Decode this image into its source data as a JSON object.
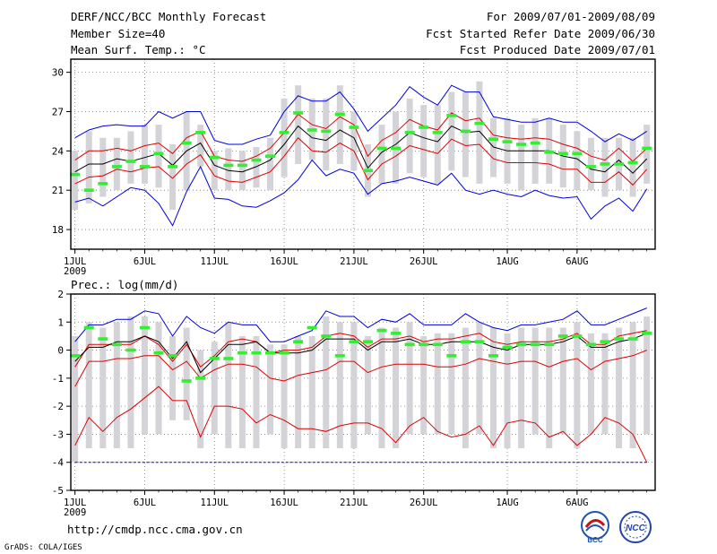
{
  "header": {
    "title": "DERF/NCC/BCC Monthly Forecast",
    "member_size": "Member Size=40",
    "variable": "Mean Surf. Temp.: °C",
    "forecast_range": "For 2009/07/01-2009/08/09",
    "start_date": "Fcst Started Refer Date 2009/06/30",
    "produced_date": "Fcst Produced Date 2009/07/01"
  },
  "footer": {
    "url": "http://cmdp.ncc.cma.gov.cn",
    "credit": "GrADS: COLA/IGES",
    "logo1": "BCC",
    "logo2": "NCC"
  },
  "colors": {
    "envelope": "#0000dd",
    "sd": "#dd0000",
    "mean": "#000000",
    "box": "#d4d4d8",
    "median": "#33ee33",
    "grid": "#777777"
  },
  "chart_data": [
    {
      "id": "temp",
      "type": "line",
      "title": "",
      "ylabel": "Mean Surf. Temp.: °C",
      "ylim": [
        16.5,
        31
      ],
      "yticks": [
        18,
        21,
        24,
        27,
        30
      ],
      "xticks": [
        {
          "day": 1,
          "label": "1JUL"
        },
        {
          "day": 6,
          "label": "6JUL"
        },
        {
          "day": 11,
          "label": "11JUL"
        },
        {
          "day": 16,
          "label": "16JUL"
        },
        {
          "day": 21,
          "label": "21JUL"
        },
        {
          "day": 26,
          "label": "26JUL"
        },
        {
          "day": 32,
          "label": "1AUG"
        },
        {
          "day": 37,
          "label": "6AUG"
        }
      ],
      "year_label": "2009",
      "series": [
        {
          "name": "max",
          "color": "#0000dd",
          "values": [
            25.0,
            25.6,
            25.9,
            26.0,
            25.9,
            25.9,
            27.0,
            26.5,
            27.0,
            27.0,
            24.8,
            24.5,
            24.5,
            24.9,
            25.2,
            27.0,
            28.2,
            27.8,
            27.8,
            28.5,
            27.2,
            25.5,
            26.5,
            27.5,
            28.9,
            28.1,
            27.5,
            29.0,
            28.5,
            28.5,
            26.6,
            26.4,
            26.2,
            26.2,
            26.5,
            26.2,
            26.2,
            25.5,
            24.7,
            25.3,
            24.8,
            25.5
          ]
        },
        {
          "name": "plus_sd",
          "color": "#dd0000",
          "values": [
            23.3,
            24.0,
            24.0,
            24.2,
            24.0,
            24.4,
            24.6,
            23.8,
            25.0,
            25.5,
            23.6,
            23.3,
            23.2,
            23.6,
            24.2,
            25.4,
            26.8,
            26.0,
            25.7,
            26.6,
            26.0,
            23.6,
            24.8,
            25.4,
            26.4,
            25.9,
            25.6,
            26.9,
            26.3,
            26.5,
            25.2,
            25.0,
            24.9,
            25.0,
            24.9,
            24.5,
            24.2,
            23.6,
            23.3,
            24.2,
            23.2,
            24.2
          ]
        },
        {
          "name": "mean",
          "color": "#000000",
          "values": [
            22.4,
            23.0,
            23.0,
            23.4,
            23.2,
            23.5,
            23.8,
            22.9,
            24.0,
            24.6,
            22.9,
            22.5,
            22.4,
            22.8,
            23.3,
            24.5,
            25.9,
            25.0,
            24.8,
            25.6,
            25.0,
            22.7,
            23.9,
            24.5,
            25.4,
            25.0,
            24.7,
            25.9,
            25.4,
            25.5,
            24.3,
            24.0,
            24.0,
            24.0,
            24.0,
            23.6,
            23.4,
            22.6,
            22.4,
            23.3,
            22.3,
            23.4
          ]
        },
        {
          "name": "minus_sd",
          "color": "#dd0000",
          "values": [
            21.5,
            22.0,
            22.1,
            22.6,
            22.4,
            22.7,
            22.8,
            21.9,
            23.0,
            23.7,
            22.1,
            21.7,
            21.6,
            22.0,
            22.4,
            23.6,
            25.0,
            24.0,
            23.9,
            24.6,
            24.0,
            21.8,
            23.0,
            23.6,
            24.4,
            24.1,
            23.8,
            24.9,
            24.4,
            24.5,
            23.4,
            23.1,
            23.1,
            23.1,
            23.0,
            22.6,
            22.6,
            21.6,
            21.6,
            22.4,
            21.4,
            22.6
          ]
        },
        {
          "name": "min",
          "color": "#0000dd",
          "values": [
            20.1,
            20.4,
            19.8,
            20.5,
            21.2,
            21.0,
            20.0,
            18.3,
            20.9,
            22.8,
            20.4,
            20.3,
            19.8,
            19.7,
            20.2,
            20.8,
            21.8,
            23.3,
            22.1,
            22.6,
            22.3,
            20.7,
            21.5,
            21.7,
            22.0,
            21.7,
            21.4,
            22.3,
            21.0,
            20.7,
            21.0,
            20.7,
            20.5,
            21.0,
            20.6,
            20.4,
            20.5,
            18.8,
            19.8,
            20.4,
            19.4,
            21.1
          ]
        }
      ],
      "box_low": [
        19.5,
        20.0,
        20.5,
        21.0,
        21.5,
        21.5,
        21.2,
        19.5,
        21.0,
        22.8,
        21.0,
        21.0,
        21.0,
        21.2,
        21.0,
        22.0,
        23.0,
        23.3,
        22.5,
        23.0,
        22.5,
        20.5,
        21.5,
        21.5,
        22.3,
        22.0,
        21.5,
        22.5,
        22.0,
        21.5,
        22.0,
        21.5,
        21.0,
        21.5,
        21.5,
        21.2,
        21.0,
        21.0,
        20.5,
        21.0,
        20.5,
        21.5
      ],
      "box_high": [
        24.0,
        25.5,
        25.0,
        25.0,
        25.5,
        26.0,
        26.0,
        24.5,
        27.0,
        26.0,
        24.0,
        24.2,
        24.0,
        24.3,
        25.0,
        28.0,
        29.0,
        28.0,
        28.0,
        29.0,
        27.0,
        24.5,
        26.0,
        27.0,
        28.0,
        27.5,
        27.5,
        28.5,
        28.5,
        29.3,
        26.5,
        26.5,
        26.0,
        26.5,
        26.5,
        26.0,
        25.5,
        25.0,
        25.0,
        25.0,
        25.0,
        26.0
      ],
      "median": [
        22.2,
        21.0,
        21.5,
        22.8,
        23.2,
        22.8,
        23.8,
        22.8,
        24.6,
        25.4,
        23.5,
        22.9,
        22.9,
        23.3,
        23.6,
        25.4,
        26.9,
        25.6,
        25.5,
        26.8,
        25.8,
        22.5,
        24.2,
        24.2,
        25.4,
        25.8,
        25.4,
        26.7,
        25.5,
        26.1,
        24.9,
        24.7,
        24.5,
        24.6,
        23.9,
        23.8,
        23.8,
        22.8,
        23.0,
        23.0,
        23.1,
        24.2
      ]
    },
    {
      "id": "prec",
      "type": "line",
      "title": "",
      "ylabel": "Prec.: log(mm/d)",
      "ylim": [
        -5,
        2
      ],
      "yticks": [
        -5,
        -4,
        -3,
        -2,
        -1,
        0,
        1,
        2
      ],
      "xticks": [
        {
          "day": 1,
          "label": "1JUL"
        },
        {
          "day": 6,
          "label": "6JUL"
        },
        {
          "day": 11,
          "label": "11JUL"
        },
        {
          "day": 16,
          "label": "16JUL"
        },
        {
          "day": 21,
          "label": "21JUL"
        },
        {
          "day": 26,
          "label": "26JUL"
        },
        {
          "day": 32,
          "label": "1AUG"
        },
        {
          "day": 37,
          "label": "6AUG"
        }
      ],
      "year_label": "2009",
      "series": [
        {
          "name": "max",
          "color": "#0000dd",
          "values": [
            0.3,
            0.9,
            0.9,
            1.1,
            1.1,
            1.4,
            1.3,
            0.5,
            1.2,
            0.8,
            0.6,
            1.0,
            0.9,
            0.9,
            0.3,
            0.3,
            0.5,
            0.7,
            1.4,
            1.2,
            1.2,
            0.8,
            1.1,
            1.0,
            1.3,
            0.9,
            0.9,
            0.9,
            1.3,
            1.0,
            0.8,
            0.7,
            0.9,
            0.9,
            1.0,
            1.1,
            1.4,
            0.9,
            0.9,
            1.1,
            1.3,
            1.5
          ]
        },
        {
          "name": "plus_sd",
          "color": "#dd0000",
          "values": [
            -0.6,
            0.2,
            0.2,
            0.2,
            0.2,
            0.5,
            0.2,
            -0.4,
            0.2,
            -0.6,
            -0.2,
            0.3,
            0.4,
            0.3,
            -0.1,
            0.0,
            0.0,
            0.1,
            0.5,
            0.6,
            0.5,
            0.1,
            0.4,
            0.4,
            0.5,
            0.3,
            0.4,
            0.4,
            0.5,
            0.6,
            0.3,
            0.2,
            0.3,
            0.3,
            0.3,
            0.4,
            0.6,
            0.2,
            0.2,
            0.5,
            0.6,
            0.7
          ]
        },
        {
          "name": "mean",
          "color": "#000000",
          "values": [
            -0.4,
            0.1,
            0.1,
            0.3,
            0.3,
            0.5,
            0.3,
            -0.3,
            0.3,
            -0.8,
            -0.3,
            0.2,
            0.2,
            0.3,
            -0.1,
            -0.1,
            -0.1,
            0.0,
            0.4,
            0.4,
            0.4,
            0.0,
            0.3,
            0.3,
            0.4,
            0.2,
            0.2,
            0.3,
            0.3,
            0.3,
            0.1,
            0.0,
            0.2,
            0.2,
            0.2,
            0.3,
            0.5,
            0.1,
            0.1,
            0.3,
            0.4,
            0.6
          ]
        },
        {
          "name": "minus_sd",
          "color": "#dd0000",
          "values": [
            -1.3,
            -0.4,
            -0.4,
            -0.3,
            -0.3,
            -0.2,
            -0.2,
            -0.7,
            -0.4,
            -1.0,
            -0.7,
            -0.5,
            -0.5,
            -0.6,
            -1.0,
            -1.1,
            -0.9,
            -0.8,
            -0.7,
            -0.4,
            -0.4,
            -0.8,
            -0.6,
            -0.5,
            -0.5,
            -0.5,
            -0.6,
            -0.6,
            -0.5,
            -0.3,
            -0.4,
            -0.5,
            -0.4,
            -0.4,
            -0.6,
            -0.4,
            -0.3,
            -0.7,
            -0.4,
            -0.3,
            -0.2,
            0.0
          ]
        },
        {
          "name": "min_sd",
          "color": "#dd0000",
          "values": [
            -3.4,
            -2.4,
            -2.9,
            -2.4,
            -2.1,
            -1.7,
            -1.3,
            -1.8,
            -1.8,
            -3.1,
            -2.0,
            -2.0,
            -2.1,
            -2.6,
            -2.3,
            -2.5,
            -2.8,
            -2.8,
            -2.9,
            -2.7,
            -2.6,
            -2.6,
            -2.8,
            -3.3,
            -2.7,
            -2.4,
            -2.9,
            -3.1,
            -3.0,
            -2.7,
            -3.4,
            -2.6,
            -2.5,
            -2.6,
            -3.1,
            -2.9,
            -3.4,
            -3.0,
            -2.4,
            -2.6,
            -3.0,
            -4.0
          ]
        },
        {
          "name": "floor",
          "color": "#0000dd",
          "values": [
            -4,
            -4,
            -4,
            -4,
            -4,
            -4,
            -4,
            -4,
            -4,
            -4,
            -4,
            -4,
            -4,
            -4,
            -4,
            -4,
            -4,
            -4,
            -4,
            -4,
            -4,
            -4,
            -4,
            -4,
            -4,
            -4,
            -4,
            -4,
            -4,
            -4,
            -4,
            -4,
            -4,
            -4,
            -4,
            -4,
            -4,
            -4,
            -4,
            -4,
            -4,
            -4
          ]
        }
      ],
      "box_low": [
        -4.0,
        -3.5,
        -3.5,
        -3.5,
        -3.5,
        -3.0,
        -3.0,
        -2.5,
        -2.5,
        -3.5,
        -3.0,
        -3.5,
        -3.5,
        -3.5,
        -3.0,
        -3.5,
        -3.5,
        -3.5,
        -3.5,
        -3.5,
        -3.5,
        -3.0,
        -3.5,
        -3.5,
        -3.0,
        -3.0,
        -3.0,
        -3.0,
        -3.5,
        -3.0,
        -3.5,
        -3.5,
        -3.5,
        -3.0,
        -3.5,
        -3.0,
        -3.5,
        -3.0,
        -3.0,
        -3.5,
        -3.5,
        -3.0
      ],
      "box_high": [
        0.5,
        1.0,
        0.8,
        1.0,
        1.2,
        1.2,
        1.0,
        0.5,
        0.8,
        0.0,
        0.3,
        1.0,
        0.5,
        0.5,
        0.2,
        0.2,
        0.5,
        0.5,
        1.2,
        1.0,
        1.0,
        0.5,
        0.8,
        0.8,
        1.0,
        0.5,
        0.6,
        0.6,
        0.8,
        1.0,
        0.8,
        0.6,
        0.8,
        0.8,
        0.8,
        0.8,
        1.0,
        0.6,
        0.6,
        0.8,
        1.0,
        1.2
      ],
      "median": [
        -0.2,
        0.8,
        0.4,
        0.2,
        0.0,
        0.8,
        -0.1,
        -0.2,
        -1.1,
        -1.0,
        -0.3,
        -0.3,
        -0.1,
        -0.1,
        -0.1,
        -0.1,
        0.3,
        0.8,
        0.5,
        -0.2,
        0.3,
        0.3,
        0.7,
        0.6,
        0.2,
        0.2,
        0.2,
        -0.2,
        0.3,
        0.3,
        -0.2,
        0.1,
        0.2,
        0.2,
        0.2,
        0.5,
        0.5,
        0.2,
        0.3,
        0.4,
        0.4,
        0.6
      ]
    }
  ]
}
